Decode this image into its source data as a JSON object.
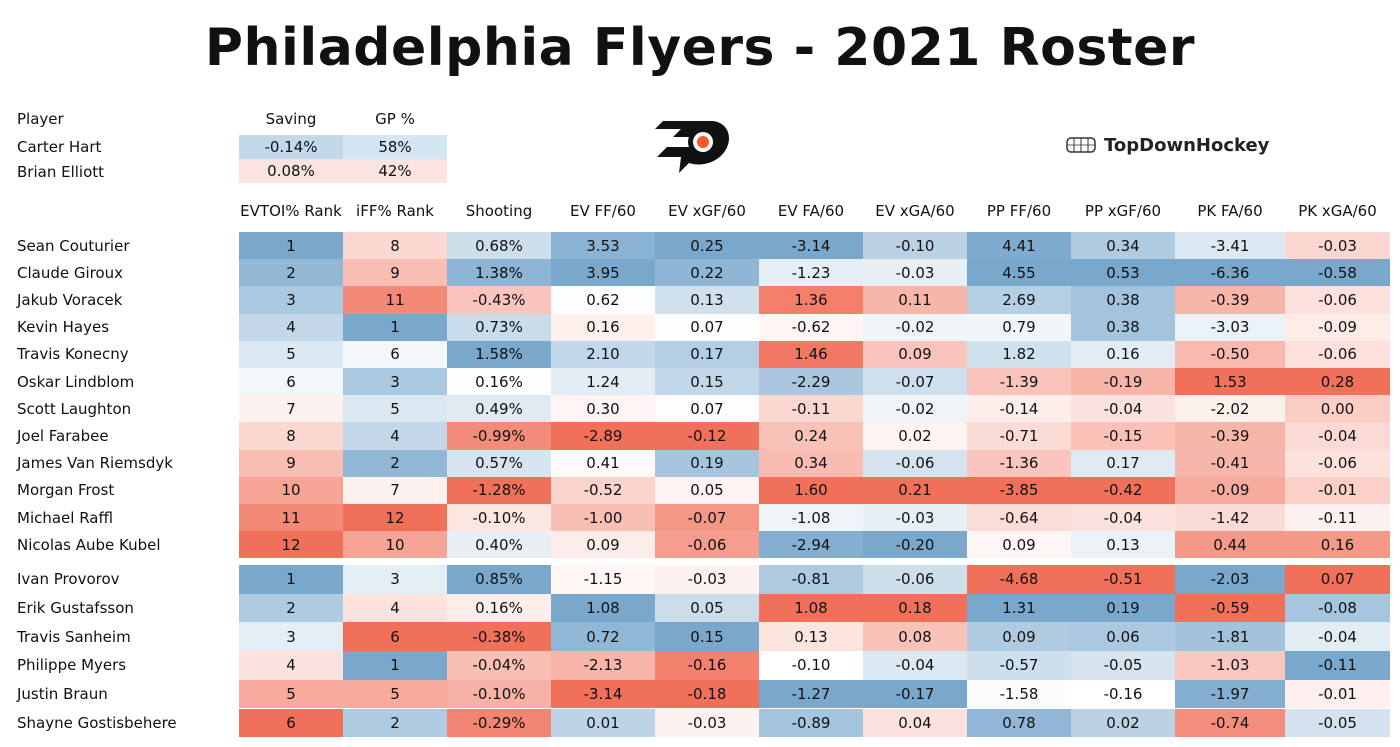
{
  "title": "Philadelphia Flyers - 2021 Roster",
  "brand": "TopDownHockey",
  "goalies": {
    "headers": [
      "Player",
      "Saving",
      "GP %"
    ],
    "rows": [
      {
        "name": "Carter Hart",
        "saving": "-0.14%",
        "gp": "58%"
      },
      {
        "name": "Brian Elliott",
        "saving": "0.08%",
        "gp": "42%"
      }
    ]
  },
  "chart_data": {
    "type": "table",
    "title": "Philadelphia Flyers - 2021 Roster",
    "columns": [
      "EVTOI% Rank",
      "iFF% Rank",
      "Shooting",
      "EV FF/60",
      "EV xGF/60",
      "EV FA/60",
      "EV xGA/60",
      "PP FF/60",
      "PP xGF/60",
      "PK FA/60",
      "PK xGA/60"
    ],
    "forwards": [
      {
        "player": "Sean Couturier",
        "values": [
          "1",
          "8",
          "0.68%",
          "3.53",
          "0.25",
          "-3.14",
          "-0.10",
          "4.41",
          "0.34",
          "-3.41",
          "-0.03"
        ]
      },
      {
        "player": "Claude Giroux",
        "values": [
          "2",
          "9",
          "1.38%",
          "3.95",
          "0.22",
          "-1.23",
          "-0.03",
          "4.55",
          "0.53",
          "-6.36",
          "-0.58"
        ]
      },
      {
        "player": "Jakub Voracek",
        "values": [
          "3",
          "11",
          "-0.43%",
          "0.62",
          "0.13",
          "1.36",
          "0.11",
          "2.69",
          "0.38",
          "-0.39",
          "-0.06"
        ]
      },
      {
        "player": "Kevin Hayes",
        "values": [
          "4",
          "1",
          "0.73%",
          "0.16",
          "0.07",
          "-0.62",
          "-0.02",
          "0.79",
          "0.38",
          "-3.03",
          "-0.09"
        ]
      },
      {
        "player": "Travis Konecny",
        "values": [
          "5",
          "6",
          "1.58%",
          "2.10",
          "0.17",
          "1.46",
          "0.09",
          "1.82",
          "0.16",
          "-0.50",
          "-0.06"
        ]
      },
      {
        "player": "Oskar Lindblom",
        "values": [
          "6",
          "3",
          "0.16%",
          "1.24",
          "0.15",
          "-2.29",
          "-0.07",
          "-1.39",
          "-0.19",
          "1.53",
          "0.28"
        ]
      },
      {
        "player": "Scott Laughton",
        "values": [
          "7",
          "5",
          "0.49%",
          "0.30",
          "0.07",
          "-0.11",
          "-0.02",
          "-0.14",
          "-0.04",
          "-2.02",
          "0.00"
        ]
      },
      {
        "player": "Joel Farabee",
        "values": [
          "8",
          "4",
          "-0.99%",
          "-2.89",
          "-0.12",
          "0.24",
          "0.02",
          "-0.71",
          "-0.15",
          "-0.39",
          "-0.04"
        ]
      },
      {
        "player": "James Van Riemsdyk",
        "values": [
          "9",
          "2",
          "0.57%",
          "0.41",
          "0.19",
          "0.34",
          "-0.06",
          "-1.36",
          "0.17",
          "-0.41",
          "-0.06"
        ]
      },
      {
        "player": "Morgan Frost",
        "values": [
          "10",
          "7",
          "-1.28%",
          "-0.52",
          "0.05",
          "1.60",
          "0.21",
          "-3.85",
          "-0.42",
          "-0.09",
          "-0.01"
        ]
      },
      {
        "player": "Michael Raffl",
        "values": [
          "11",
          "12",
          "-0.10%",
          "-1.00",
          "-0.07",
          "-1.08",
          "-0.03",
          "-0.64",
          "-0.04",
          "-1.42",
          "-0.11"
        ]
      },
      {
        "player": "Nicolas Aube Kubel",
        "values": [
          "12",
          "10",
          "0.40%",
          "0.09",
          "-0.06",
          "-2.94",
          "-0.20",
          "0.09",
          "0.13",
          "0.44",
          "0.16"
        ]
      }
    ],
    "defense": [
      {
        "player": "Ivan Provorov",
        "values": [
          "1",
          "3",
          "0.85%",
          "-1.15",
          "-0.03",
          "-0.81",
          "-0.06",
          "-4.68",
          "-0.51",
          "-2.03",
          "0.07"
        ]
      },
      {
        "player": "Erik Gustafsson",
        "values": [
          "2",
          "4",
          "0.16%",
          "1.08",
          "0.05",
          "1.08",
          "0.18",
          "1.31",
          "0.19",
          "-0.59",
          "-0.08"
        ]
      },
      {
        "player": "Travis Sanheim",
        "values": [
          "3",
          "6",
          "-0.38%",
          "0.72",
          "0.15",
          "0.13",
          "0.08",
          "0.09",
          "0.06",
          "-1.81",
          "-0.04"
        ]
      },
      {
        "player": "Philippe Myers",
        "values": [
          "4",
          "1",
          "-0.04%",
          "-2.13",
          "-0.16",
          "-0.10",
          "-0.04",
          "-0.57",
          "-0.05",
          "-1.03",
          "-0.11"
        ]
      },
      {
        "player": "Justin Braun",
        "values": [
          "5",
          "5",
          "-0.10%",
          "-3.14",
          "-0.18",
          "-1.27",
          "-0.17",
          "-1.58",
          "-0.16",
          "-1.97",
          "-0.01"
        ]
      },
      {
        "player": "Shayne Gostisbehere",
        "values": [
          "6",
          "2",
          "-0.29%",
          "0.01",
          "-0.03",
          "-0.89",
          "0.04",
          "0.78",
          "0.02",
          "-0.74",
          "-0.05"
        ]
      }
    ]
  }
}
